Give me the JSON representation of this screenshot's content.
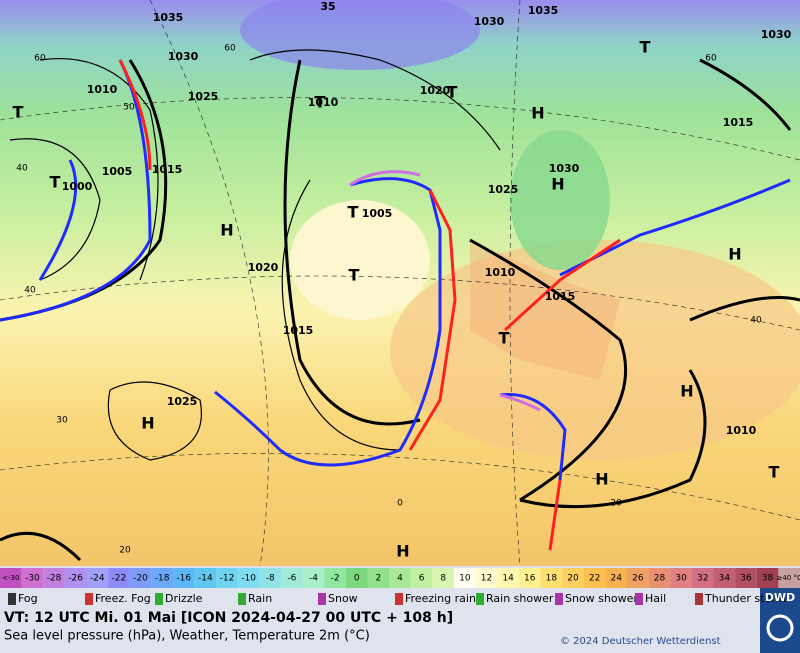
{
  "map": {
    "pressure_labels": [
      "1035",
      "1030",
      "1025",
      "1010",
      "1005",
      "1000",
      "1015",
      "1020",
      "1015",
      "1025",
      "1010",
      "1020",
      "1030",
      "1035",
      "1005",
      "1025",
      "1030",
      "1010",
      "1015",
      "1015",
      "1010",
      "1030",
      "35"
    ],
    "isotherm_labels": [
      "60",
      "60",
      "60",
      "50",
      "40",
      "40",
      "30",
      "20",
      "20",
      "0",
      "40"
    ],
    "systems": [
      "H",
      "H",
      "H",
      "H",
      "H",
      "H",
      "H",
      "H",
      "T",
      "T",
      "T",
      "T",
      "T",
      "T",
      "T",
      "T",
      "T"
    ]
  },
  "scale": {
    "labels": [
      "<-30",
      "-30",
      "-28",
      "-26",
      "-24",
      "-22",
      "-20",
      "-18",
      "-16",
      "-14",
      "-12",
      "-10",
      "-8",
      "-6",
      "-4",
      "-2",
      "0",
      "2",
      "4",
      "6",
      "8",
      "10",
      "12",
      "14",
      "16",
      "18",
      "20",
      "22",
      "24",
      "26",
      "28",
      "30",
      "32",
      "34",
      "36",
      "38",
      "≥40 °C"
    ]
  },
  "legend": [
    "Fog",
    "Freez. Fog",
    "Drizzle",
    "Rain",
    "Snow",
    "Freezing rain",
    "Rain shower",
    "Snow shower",
    "Hail",
    "Thunder storm"
  ],
  "footer": {
    "valid": "VT: 12 UTC Mi.  01 Mai [ICON 2024-04-27  00 UTC + 108 h]",
    "description": "Sea level pressure (hPa), Weather, Temperature 2m (°C)",
    "copyright": "© 2024 Deutscher Wetterdienst",
    "logo": "DWD"
  }
}
